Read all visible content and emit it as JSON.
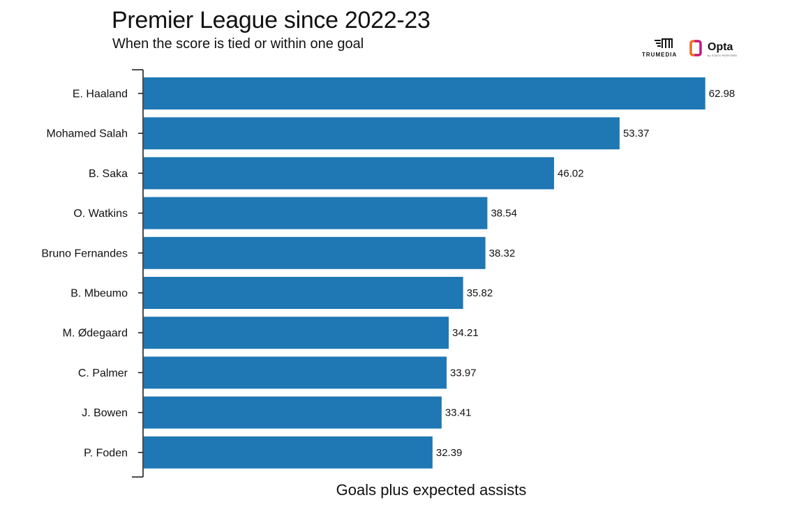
{
  "header": {
    "title": "Premier League since 2022-23",
    "subtitle": "When the score is tied or within one goal"
  },
  "logos": {
    "trumedia": "TRUMEDIA",
    "opta": "Opta",
    "opta_tagline": "by STATS PERFORM"
  },
  "colors": {
    "bar": "#1f77b4",
    "axis": "#111111",
    "opta_orange": "#f26b21",
    "opta_magenta": "#c2187a"
  },
  "chart_data": {
    "type": "bar",
    "orientation": "horizontal",
    "xlabel": "Goals plus expected assists",
    "categories": [
      "E. Haaland",
      "Mohamed Salah",
      "B. Saka",
      "O. Watkins",
      "Bruno Fernandes",
      "B. Mbeumo",
      "M. Ødegaard",
      "C. Palmer",
      "J. Bowen",
      "P. Foden"
    ],
    "values": [
      62.98,
      53.37,
      46.02,
      38.54,
      38.32,
      35.82,
      34.21,
      33.97,
      33.41,
      32.39
    ],
    "value_labels": [
      "62.98",
      "53.37",
      "46.02",
      "38.54",
      "38.32",
      "35.82",
      "34.21",
      "33.97",
      "33.41",
      "32.39"
    ],
    "xlim": [
      0,
      63
    ],
    "grid": false,
    "legend": "none"
  }
}
